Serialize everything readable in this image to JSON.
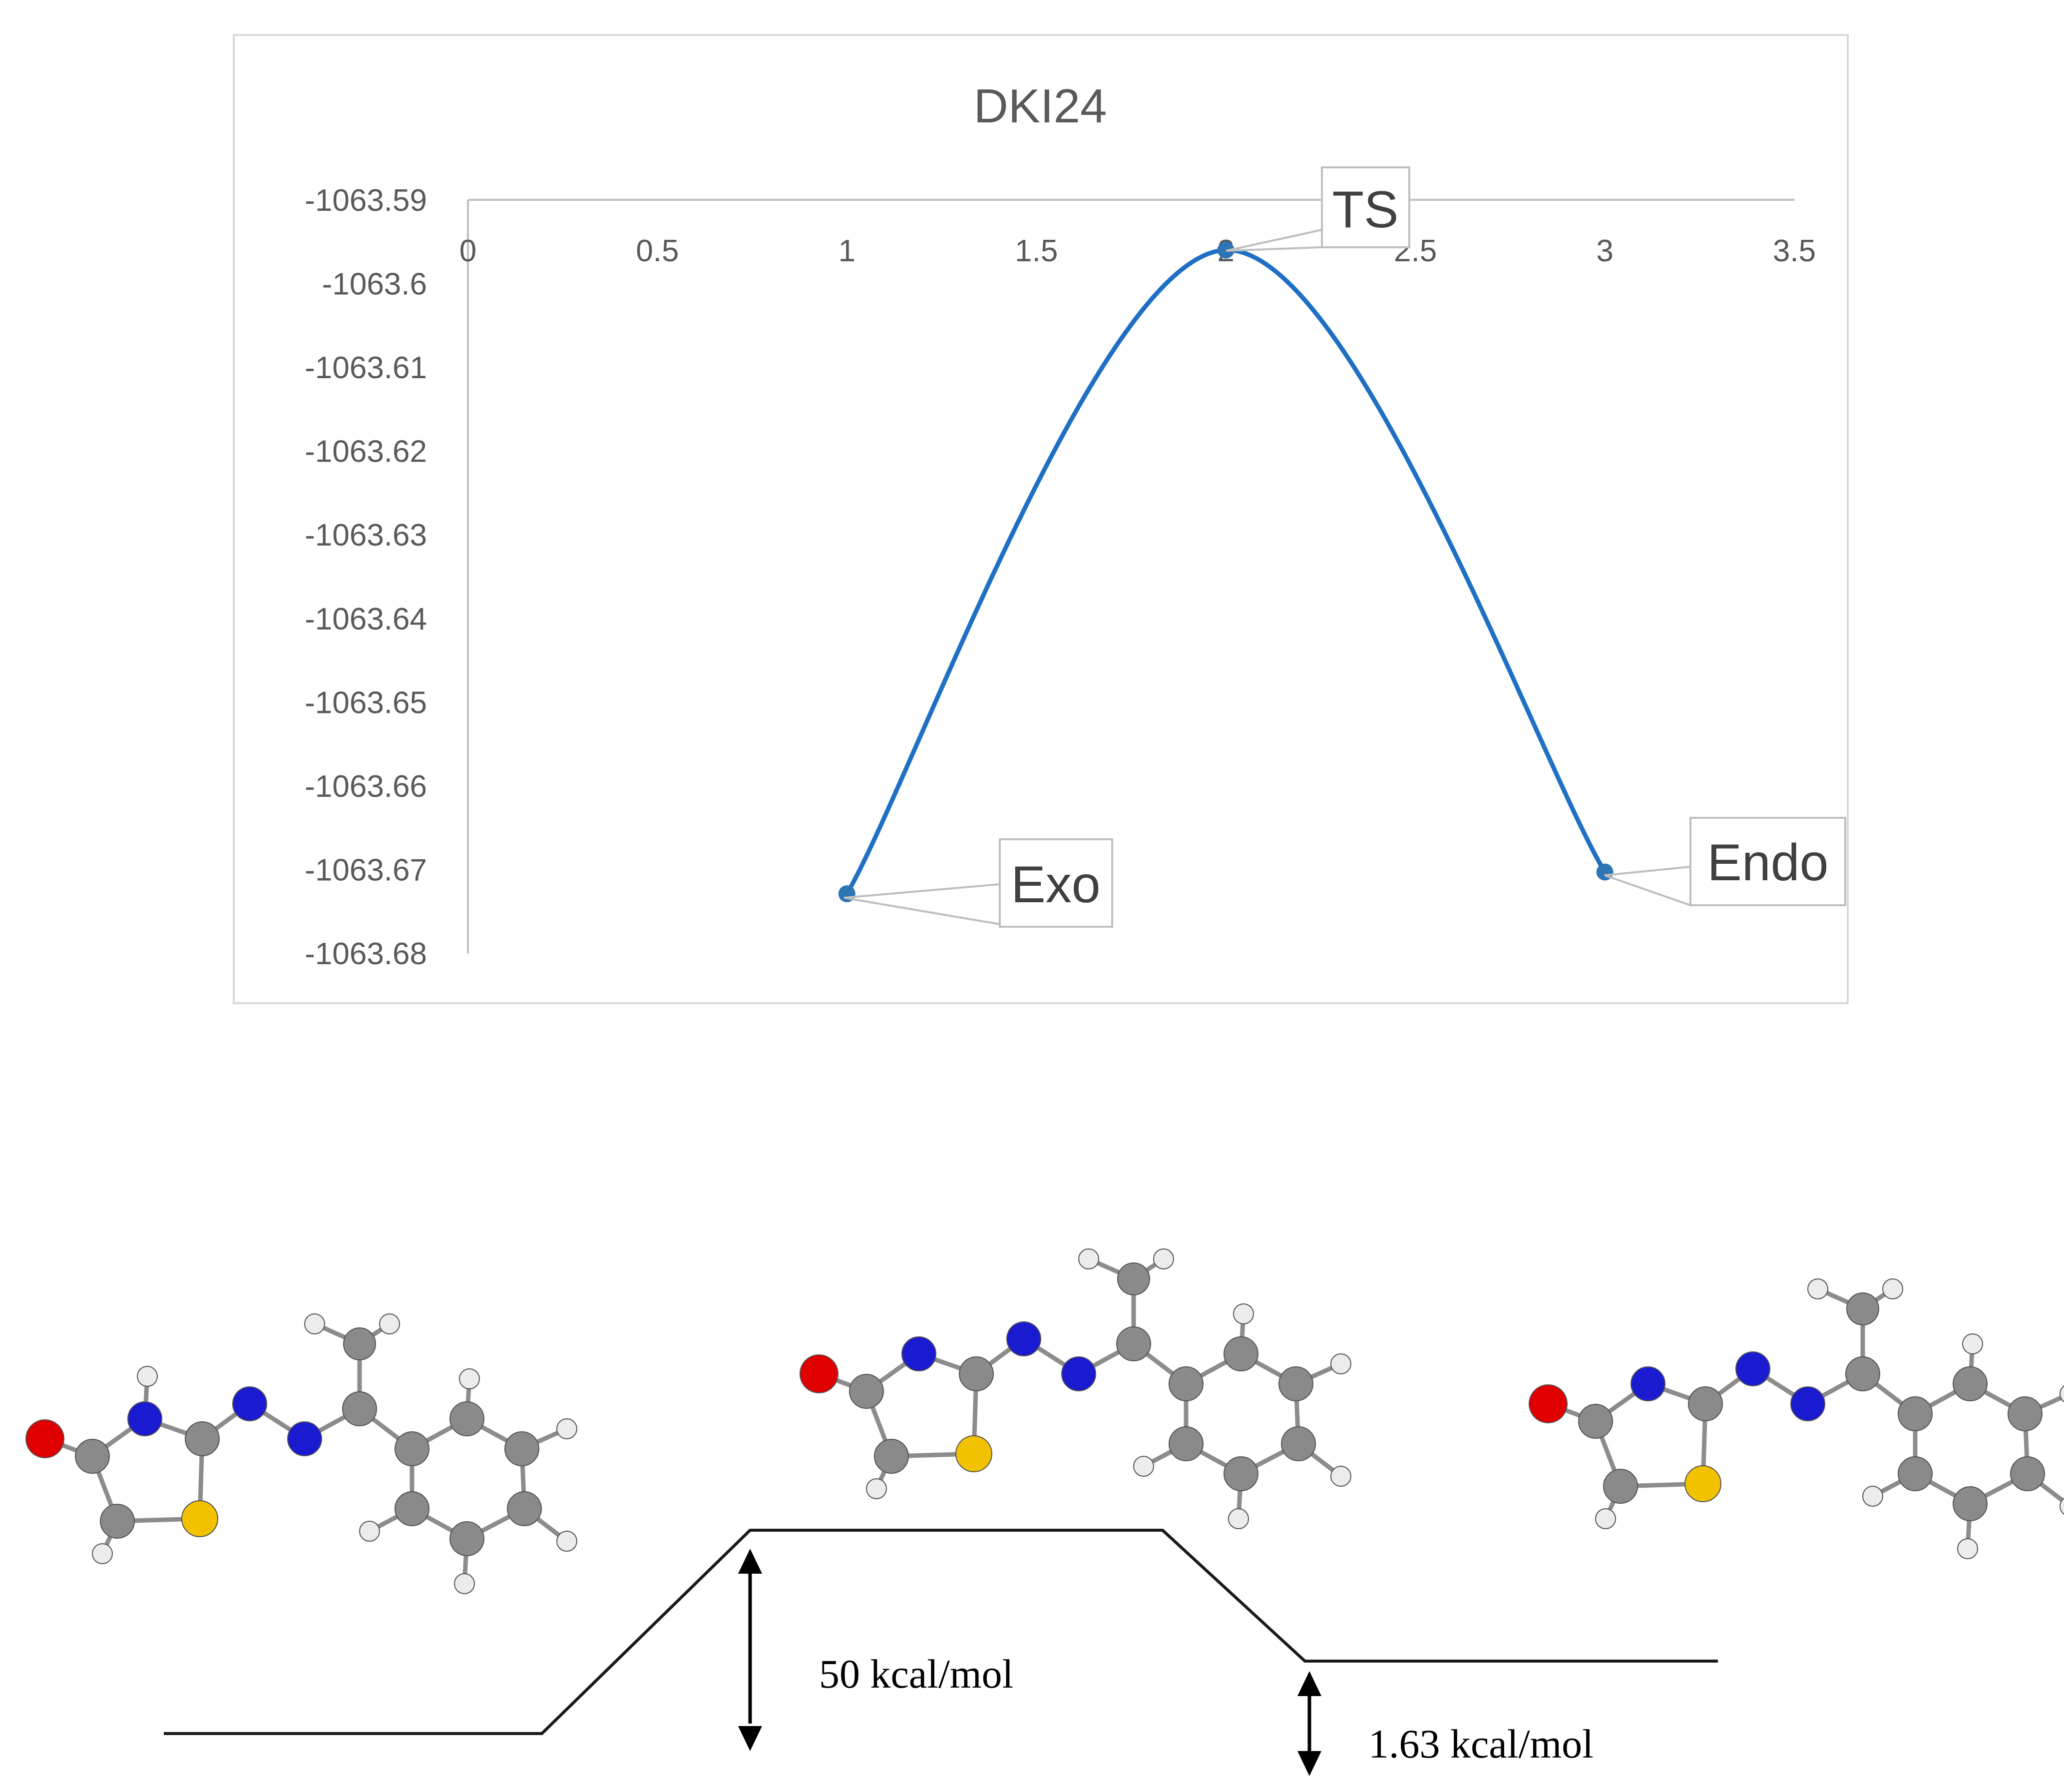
{
  "chart_data": {
    "type": "line",
    "title": "DKI24",
    "xlabel": "",
    "ylabel": "",
    "xlim": [
      0,
      3.5
    ],
    "ylim": [
      -1063.68,
      -1063.59
    ],
    "x_ticks": [
      "0",
      "0.5",
      "1",
      "1.5",
      "2",
      "2.5",
      "3",
      "3.5"
    ],
    "y_ticks": [
      "-1063.59",
      "-1063.6",
      "-1063.61",
      "-1063.62",
      "-1063.63",
      "-1063.64",
      "-1063.65",
      "-1063.66",
      "-1063.67",
      "-1063.68"
    ],
    "grid": false,
    "legend": "none",
    "smooth": true,
    "series": [
      {
        "name": "DKI24",
        "color": "#1f6fc5",
        "x": [
          1,
          2,
          3
        ],
        "values": [
          -1063.6729,
          -1063.596,
          -1063.6703
        ],
        "point_labels": [
          "Exo",
          "TS",
          "Endo"
        ]
      }
    ]
  },
  "energy_diagram": {
    "barrier_label": "50 kcal/mol",
    "difference_label": "1.63 kcal/mol"
  },
  "atom_colors": {
    "carbon": "#8a8a8a",
    "hydrogen": "#ececec",
    "nitrogen": "#1a1ad0",
    "oxygen": "#e00000",
    "sulfur": "#f2c200"
  }
}
